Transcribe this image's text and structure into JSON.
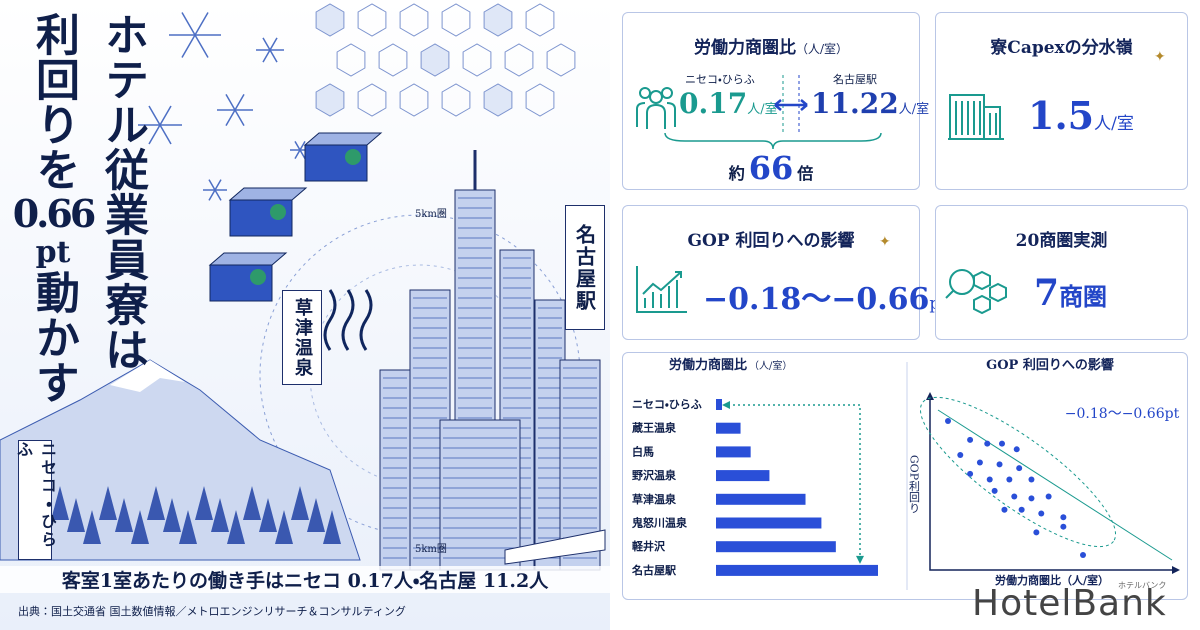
{
  "hero": {
    "title_line1": "ホテル従業員寮は",
    "title_line2a": "利回りを",
    "title_number": "0.66",
    "title_unit": "pt",
    "title_line2b": "動かす",
    "label_niseko": "ニセコ・ひらふ",
    "label_kusatsu": "草津温泉",
    "label_nagoya": "名古屋駅",
    "ring_label_top": "5km圏",
    "ring_label_bottom": "5km圏",
    "caption": "客室1室あたりの働き手はニセコ 0.17人・名古屋 11.2人",
    "source": "出典：国土交通省 国土数値情報／メトロエンジンリサーチ＆コンサルティング"
  },
  "cards": [
    {
      "title": "労働力商圏比",
      "title_unit": "（人/室）",
      "left_label": "ニセコ・ひらふ",
      "left_value": 0.17,
      "left_unit": "人/室",
      "right_label": "名古屋駅",
      "right_value": 11.22,
      "right_unit": "人/室",
      "ratio_prefix": "約",
      "ratio_value": 66,
      "ratio_unit": "倍"
    },
    {
      "title": "寮Capexの分水嶺",
      "value": 1.5,
      "unit": "人/室"
    },
    {
      "title": "GOP 利回りへの影響",
      "value": "−0.18〜−0.66",
      "unit": "pt"
    },
    {
      "title": "20商圏実測",
      "value": 7,
      "unit": "商圏"
    }
  ],
  "chart_data": [
    {
      "type": "bar",
      "title": "労働力商圏比",
      "unit_label": "（人/室）",
      "categories": [
        "ニセコ・ひらふ",
        "蔵王温泉",
        "白馬",
        "野沢温泉",
        "草津温泉",
        "鬼怒川温泉",
        "軽井沢",
        "名古屋駅"
      ],
      "values": [
        0.17,
        1.7,
        2.4,
        3.7,
        6.2,
        7.3,
        8.3,
        11.22
      ],
      "color": "#2a4fd8"
    },
    {
      "type": "scatter",
      "title": "GOP 利回りへの影響",
      "annotation": "−0.18〜−0.66pt",
      "x_label": "労働力商圏比（人/室）",
      "y_label": "GOP利回り",
      "color": "#2a4fd8",
      "x": [
        13,
        22,
        29,
        35,
        41,
        18,
        26,
        34,
        42,
        22,
        30,
        38,
        47,
        32,
        40,
        47,
        54,
        36,
        43,
        51,
        60,
        49,
        60,
        68
      ],
      "y": [
        89,
        79,
        77,
        77,
        74,
        71,
        67,
        66,
        64,
        61,
        58,
        58,
        58,
        52,
        49,
        48,
        49,
        42,
        42,
        40,
        38,
        30,
        33,
        18
      ]
    }
  ],
  "logo": {
    "name": "HotelBank",
    "kana": "ホテルバンク"
  }
}
